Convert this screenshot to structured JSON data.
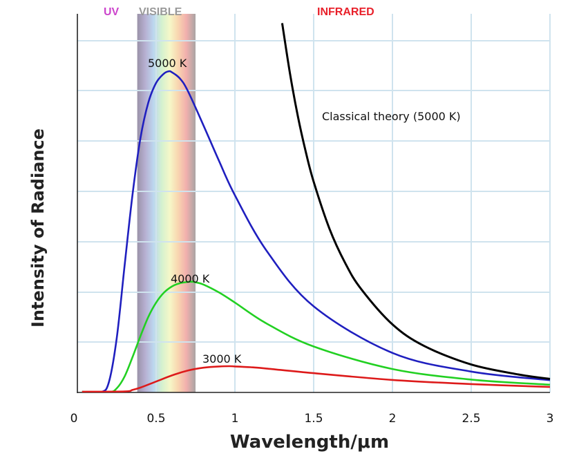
{
  "chart_data": {
    "type": "line",
    "title": "",
    "xlabel": "Wavelength/μm",
    "ylabel": "Intensity of Radiance",
    "xlim": [
      0,
      3
    ],
    "ylim": [
      0,
      1.15
    ],
    "x_ticks": [
      "0",
      "0.5",
      "1",
      "1.5",
      "2",
      "2.5",
      "3"
    ],
    "grid": true,
    "regions": [
      {
        "name": "UV",
        "label": "UV",
        "color": "#cc44cc"
      },
      {
        "name": "VISIBLE",
        "label": "VISIBLE",
        "color": "#999999",
        "x_range": [
          0.38,
          0.75
        ]
      },
      {
        "name": "INFRARED",
        "label": "INFRARED",
        "color": "#e8202a"
      }
    ],
    "series": [
      {
        "name": "5000 K",
        "label": "5000 K",
        "color": "#1f1fbf",
        "x": [
          0.15,
          0.2,
          0.25,
          0.3,
          0.35,
          0.4,
          0.45,
          0.5,
          0.55,
          0.58,
          0.6,
          0.65,
          0.7,
          0.8,
          0.9,
          1.0,
          1.2,
          1.5,
          2.0,
          2.5,
          3.0
        ],
        "values": [
          0.001,
          0.032,
          0.17,
          0.396,
          0.616,
          0.791,
          0.902,
          0.964,
          0.993,
          1.0,
          0.997,
          0.978,
          0.94,
          0.832,
          0.72,
          0.614,
          0.442,
          0.268,
          0.123,
          0.065,
          0.038
        ]
      },
      {
        "name": "4000 K",
        "label": "4000 K",
        "color": "#22d022",
        "x": [
          0.2,
          0.25,
          0.3,
          0.35,
          0.4,
          0.45,
          0.5,
          0.55,
          0.6,
          0.65,
          0.7,
          0.725,
          0.75,
          0.8,
          0.9,
          1.0,
          1.2,
          1.5,
          2.0,
          2.5,
          3.0
        ],
        "values": [
          0.0012,
          0.013,
          0.05,
          0.11,
          0.175,
          0.235,
          0.28,
          0.311,
          0.33,
          0.34,
          0.344,
          0.345,
          0.343,
          0.336,
          0.311,
          0.28,
          0.215,
          0.143,
          0.073,
          0.04,
          0.024
        ]
      },
      {
        "name": "3000 K",
        "label": "3000 K",
        "color": "#dd1a1a",
        "x": [
          0.3,
          0.35,
          0.4,
          0.5,
          0.6,
          0.7,
          0.8,
          0.9,
          0.966,
          1.0,
          1.1,
          1.2,
          1.5,
          2.0,
          2.5,
          3.0
        ],
        "values": [
          0.003,
          0.008,
          0.015,
          0.034,
          0.053,
          0.068,
          0.077,
          0.081,
          0.0818,
          0.081,
          0.0785,
          0.0745,
          0.06,
          0.039,
          0.026,
          0.017
        ]
      },
      {
        "name": "Classical theory (5000 K)",
        "label": "Classical theory (5000 K)",
        "color": "#000000",
        "x": [
          1.3,
          1.35,
          1.4,
          1.45,
          1.5,
          1.6,
          1.7,
          1.8,
          2.0,
          2.2,
          2.5,
          2.8,
          3.0
        ],
        "values": [
          1.15,
          0.992,
          0.859,
          0.749,
          0.656,
          0.51,
          0.403,
          0.323,
          0.212,
          0.145,
          0.087,
          0.056,
          0.042
        ]
      }
    ]
  }
}
